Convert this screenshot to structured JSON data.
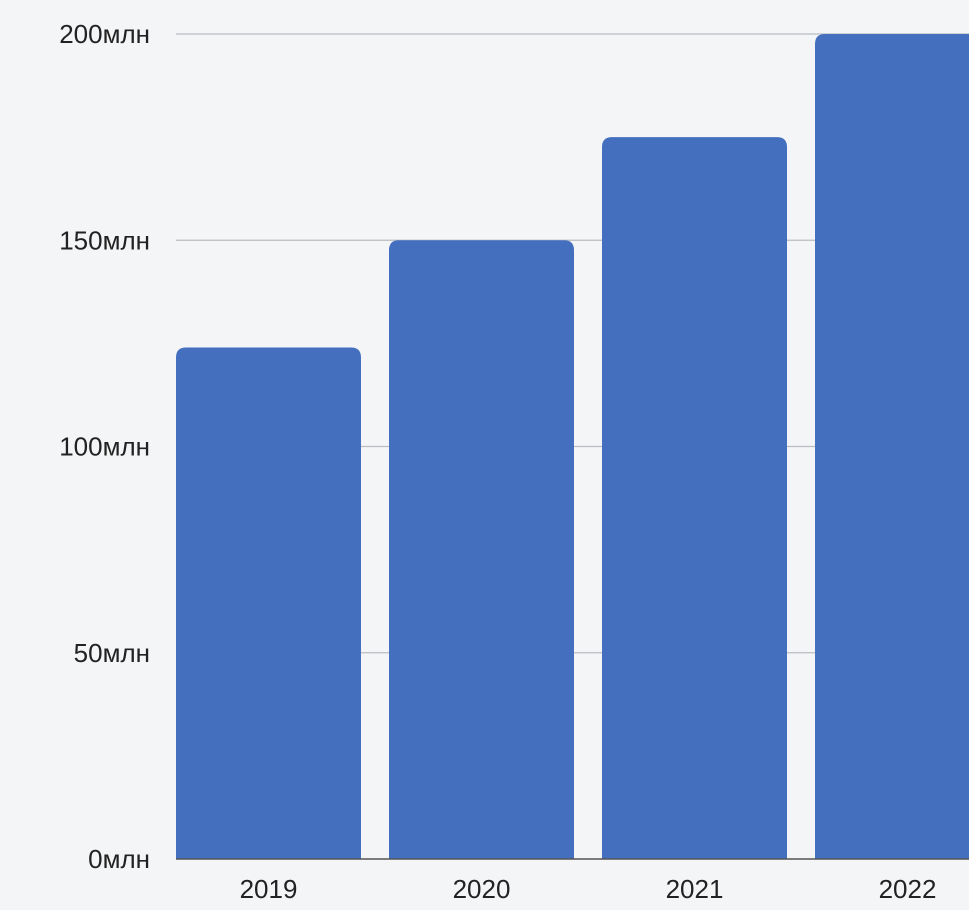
{
  "chart_data": {
    "type": "bar",
    "categories": [
      "2019",
      "2020",
      "2021",
      "2022"
    ],
    "values": [
      124,
      150,
      175,
      200
    ],
    "y_ticks": [
      {
        "value": 0,
        "label": "0млн"
      },
      {
        "value": 50,
        "label": "50млн"
      },
      {
        "value": 100,
        "label": "100млн"
      },
      {
        "value": 150,
        "label": "150млн"
      },
      {
        "value": 200,
        "label": "200млн"
      }
    ],
    "ylim": [
      0,
      200
    ],
    "grid": true,
    "title": "",
    "xlabel": "",
    "ylabel": "",
    "colors": {
      "bar": "#436fbe",
      "grid": "#b8bcc2",
      "axis": "#555555",
      "background": "#f4f5f7"
    }
  }
}
